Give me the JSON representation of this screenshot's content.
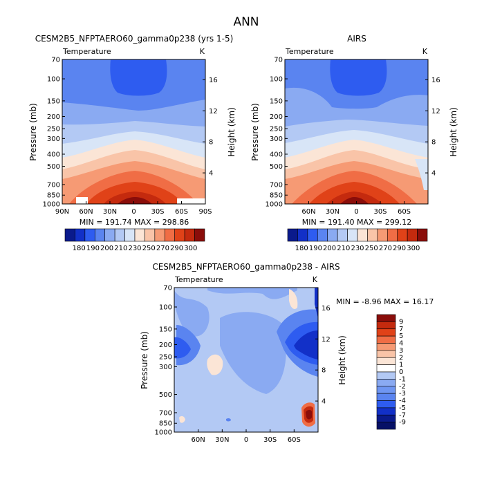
{
  "page_title": "ANN",
  "chart_data": [
    {
      "type": "contour",
      "id": "model",
      "title": "CESM2B5_NFPTAERO60_gamma0p238 (yrs 1-5)",
      "subtitle_left": "Temperature",
      "subtitle_right": "K",
      "ylabel": "Pressure (mb)",
      "ylabel_right": "Height (km)",
      "stats": "MIN = 191.74  MAX = 298.86",
      "x_ticks": [
        "90N",
        "60N",
        "30N",
        "0",
        "30S",
        "60S",
        "90S"
      ],
      "p_ticks": [
        "70",
        "100",
        "150",
        "200",
        "250",
        "300",
        "400",
        "500",
        "700",
        "850",
        "1000"
      ],
      "z_ticks": [
        "16",
        "12",
        "8",
        "4"
      ],
      "x_range": [
        -90,
        90
      ],
      "p_range": [
        70,
        1000
      ]
    },
    {
      "type": "contour",
      "id": "obs",
      "title": "AIRS",
      "subtitle_left": "Temperature",
      "subtitle_right": "K",
      "ylabel": "Pressure (mb)",
      "ylabel_right": "Height (km)",
      "stats": "MIN = 191.40  MAX = 299.12",
      "x_ticks": [
        "60N",
        "30N",
        "0",
        "30S",
        "60S"
      ],
      "p_ticks": [
        "70",
        "100",
        "150",
        "200",
        "250",
        "300",
        "400",
        "500",
        "700",
        "850",
        "1000"
      ],
      "z_ticks": [
        "16",
        "12",
        "8",
        "4"
      ],
      "x_range": [
        -90,
        90
      ],
      "p_range": [
        70,
        1000
      ]
    },
    {
      "type": "contour",
      "id": "diff",
      "title": "CESM2B5_NFPTAERO60_gamma0p238 - AIRS",
      "subtitle_left": "Temperature",
      "subtitle_right": "K",
      "ylabel": "Pressure (mb)",
      "ylabel_right": "Height (km)",
      "stats": "MIN =  -8.96  MAX =  16.17",
      "x_ticks": [
        "60N",
        "30N",
        "0",
        "30S",
        "60S"
      ],
      "p_ticks": [
        "70",
        "100",
        "150",
        "200",
        "250",
        "300",
        "500",
        "700",
        "850",
        "1000"
      ],
      "z_ticks": [
        "16",
        "12",
        "8",
        "4"
      ],
      "x_range": [
        -90,
        90
      ],
      "p_range": [
        70,
        1000
      ]
    }
  ],
  "colorbar_abs": {
    "labels": [
      "180",
      "190",
      "200",
      "210",
      "230",
      "250",
      "270",
      "290",
      "300"
    ],
    "colors": [
      "#0a1a8c",
      "#1230c8",
      "#2e5cf0",
      "#5a84f0",
      "#8aaaf2",
      "#b3c9f4",
      "#d8e5f7",
      "#fbe5d6",
      "#f9c4a8",
      "#f69a74",
      "#f06d45",
      "#e04218",
      "#c42a0e",
      "#8a0d0a"
    ]
  },
  "colorbar_diff": {
    "labels": [
      "9",
      "7",
      "5",
      "4",
      "3",
      "2",
      "1",
      "0",
      "-1",
      "-2",
      "-3",
      "-4",
      "-5",
      "-7",
      "-9"
    ],
    "colors": [
      "#8a0d0a",
      "#c42a0e",
      "#e04218",
      "#f06d45",
      "#f69a74",
      "#f9c4a8",
      "#fbe5d6",
      "#ffffff",
      "#b3c9f4",
      "#8aaaf2",
      "#6f96f2",
      "#5a84f0",
      "#2e5cf0",
      "#1230c8",
      "#0a1a8c",
      "#061066"
    ]
  }
}
